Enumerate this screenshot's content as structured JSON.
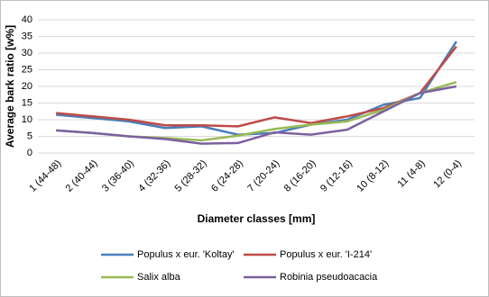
{
  "chart_data": {
    "type": "line",
    "x_label": "Diameter classes [mm]",
    "y_label": "Average bark ratio [w%]",
    "categories": [
      "1 (44-48)",
      "2 (40-44)",
      "3 (36-40)",
      "4 (32-36)",
      "5 (28-32)",
      "6 (24-28)",
      "7 (20-24)",
      "8 (16-20)",
      "9 (12-16)",
      "10 (8-12)",
      "11 (4-8)",
      "12 (0-4)"
    ],
    "series": [
      {
        "name": "Populus x eur. 'Koltay'",
        "color": "#4a7ebb",
        "values": [
          11.5,
          10.5,
          9.5,
          7.5,
          8,
          5.5,
          6,
          8.5,
          10,
          14.5,
          16.5,
          33.5
        ]
      },
      {
        "name": "Populus x eur. 'I-214'",
        "color": "#be4b48",
        "values": [
          12,
          11,
          10,
          8.3,
          8.3,
          8,
          10.7,
          9,
          11,
          13.5,
          18,
          32
        ]
      },
      {
        "name": "Salix alba",
        "color": "#98b954",
        "values": [
          6.8,
          6,
          5,
          4.5,
          3.8,
          5.2,
          7.2,
          8.5,
          9.5,
          13,
          18,
          21.3
        ]
      },
      {
        "name": "Robinia pseudoacacia",
        "color": "#7d60a0",
        "values": [
          6.8,
          6,
          5,
          4.2,
          2.8,
          3,
          6.2,
          5.5,
          7,
          12.5,
          18,
          20
        ]
      }
    ],
    "ylim": [
      0,
      40
    ],
    "yticks": [
      0,
      5,
      10,
      15,
      20,
      25,
      30,
      35,
      40
    ],
    "grid": true
  }
}
